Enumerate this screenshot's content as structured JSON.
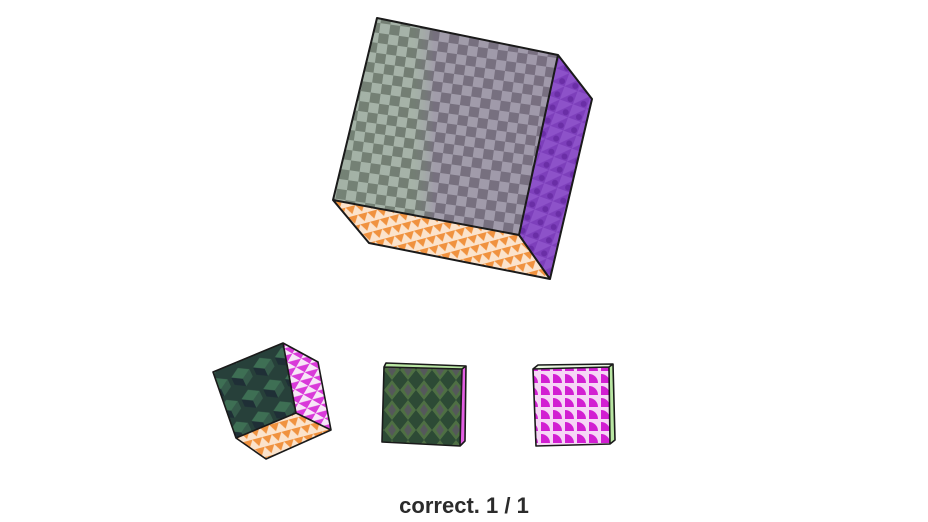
{
  "puzzle": {
    "target_cube": {
      "faces": [
        "gray-checker-pattern",
        "purple-tile-pattern",
        "orange-triangle-pattern"
      ]
    },
    "choices": [
      {
        "name": "choice-cube-1",
        "faces": [
          "dark-green-cube-pattern",
          "pink-triangle-pattern",
          "orange-triangle-pattern"
        ]
      },
      {
        "name": "choice-cube-2",
        "faces": [
          "dark-green-diamond-pattern",
          "light-green-strip",
          "pink-strip"
        ]
      },
      {
        "name": "choice-cube-3",
        "faces": [
          "magenta-quarter-circle-pattern",
          "light-green-strip"
        ]
      }
    ]
  },
  "status": {
    "text": "correct. 1 / 1"
  },
  "colors": {
    "checker_gray_light": "#b7c0b9",
    "checker_gray_dark": "#6d736e",
    "purple_face": "#7b3fb8",
    "orange": "#f39b4b",
    "dark_green": "#2e4a3e",
    "magenta": "#d42bd4",
    "light_green": "#b7e3a0"
  }
}
